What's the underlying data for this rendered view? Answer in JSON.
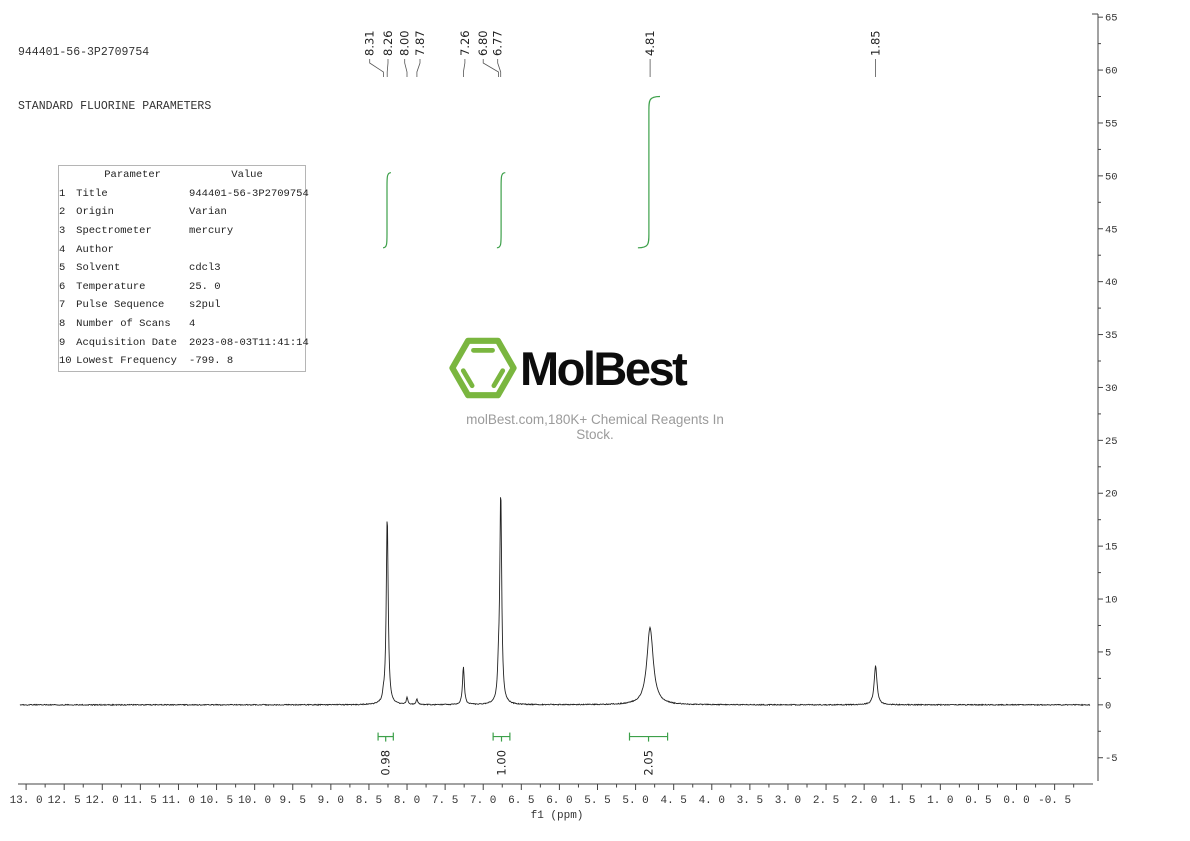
{
  "header": {
    "line1": "944401-56-3P2709754",
    "line2": "STANDARD FLUORINE PARAMETERS"
  },
  "parameters": {
    "col_param": "Parameter",
    "col_value": "Value",
    "rows": [
      {
        "num": "1",
        "name": "Title",
        "value": "944401-56-3P2709754"
      },
      {
        "num": "2",
        "name": "Origin",
        "value": "Varian"
      },
      {
        "num": "3",
        "name": "Spectrometer",
        "value": "mercury"
      },
      {
        "num": "4",
        "name": "Author",
        "value": ""
      },
      {
        "num": "5",
        "name": "Solvent",
        "value": "cdcl3"
      },
      {
        "num": "6",
        "name": "Temperature",
        "value": "25. 0"
      },
      {
        "num": "7",
        "name": "Pulse Sequence",
        "value": "s2pul"
      },
      {
        "num": "8",
        "name": "Number of Scans",
        "value": "4"
      },
      {
        "num": "9",
        "name": "Acquisition Date",
        "value": "2023-08-03T11:41:14"
      },
      {
        "num": "10",
        "name": "Lowest Frequency",
        "value": "-799. 8"
      }
    ]
  },
  "logo": {
    "wordmark": "MolBest",
    "tagline": "molBest.com,180K+ Chemical Reagents In Stock.",
    "green": "#7ab63f"
  },
  "chart_data": {
    "type": "line",
    "title": "",
    "xlabel": "f1 (ppm)",
    "ylabel": "",
    "xlim": [
      13.08,
      -1.03
    ],
    "ylim": [
      -7.2,
      65.3
    ],
    "grid": false,
    "x_ticks": [
      {
        "v": 13.0,
        "label": "13. 0"
      },
      {
        "v": 12.5,
        "label": "12. 5"
      },
      {
        "v": 12.0,
        "label": "12. 0"
      },
      {
        "v": 11.5,
        "label": "11. 5"
      },
      {
        "v": 11.0,
        "label": "11. 0"
      },
      {
        "v": 10.5,
        "label": "10. 5"
      },
      {
        "v": 10.0,
        "label": "10. 0"
      },
      {
        "v": 9.5,
        "label": "9. 5"
      },
      {
        "v": 9.0,
        "label": "9. 0"
      },
      {
        "v": 8.5,
        "label": "8. 5"
      },
      {
        "v": 8.0,
        "label": "8. 0"
      },
      {
        "v": 7.5,
        "label": "7. 5"
      },
      {
        "v": 7.0,
        "label": "7. 0"
      },
      {
        "v": 6.5,
        "label": "6. 5"
      },
      {
        "v": 6.0,
        "label": "6. 0"
      },
      {
        "v": 5.5,
        "label": "5. 5"
      },
      {
        "v": 5.0,
        "label": "5. 0"
      },
      {
        "v": 4.5,
        "label": "4. 5"
      },
      {
        "v": 4.0,
        "label": "4. 0"
      },
      {
        "v": 3.5,
        "label": "3. 5"
      },
      {
        "v": 3.0,
        "label": "3. 0"
      },
      {
        "v": 2.5,
        "label": "2. 5"
      },
      {
        "v": 2.0,
        "label": "2. 0"
      },
      {
        "v": 1.5,
        "label": "1. 5"
      },
      {
        "v": 1.0,
        "label": "1. 0"
      },
      {
        "v": 0.5,
        "label": "0. 5"
      },
      {
        "v": 0.0,
        "label": "0. 0"
      },
      {
        "v": -0.5,
        "label": "-0. 5"
      }
    ],
    "y_ticks": [
      65,
      60,
      55,
      50,
      45,
      40,
      35,
      30,
      25,
      20,
      15,
      10,
      5,
      0,
      -5
    ],
    "peaks": [
      {
        "ppm": 8.31,
        "height": 0.55,
        "hwhm": 0.012
      },
      {
        "ppm": 8.26,
        "height": 17.9,
        "hwhm": 0.015
      },
      {
        "ppm": 8.0,
        "height": 0.65,
        "hwhm": 0.012
      },
      {
        "ppm": 7.87,
        "height": 0.5,
        "hwhm": 0.012
      },
      {
        "ppm": 7.26,
        "height": 3.6,
        "hwhm": 0.014
      },
      {
        "ppm": 6.8,
        "height": 2.2,
        "hwhm": 0.013
      },
      {
        "ppm": 6.77,
        "height": 20.0,
        "hwhm": 0.015
      },
      {
        "ppm": 4.81,
        "height": 7.3,
        "hwhm": 0.05
      },
      {
        "ppm": 1.85,
        "height": 3.7,
        "hwhm": 0.022
      }
    ],
    "peak_labels": [
      {
        "text": "8.31",
        "ppm": 8.31,
        "label_ppm": 8.49
      },
      {
        "text": "8.26",
        "ppm": 8.26,
        "label_ppm": 8.25
      },
      {
        "text": "8.00",
        "ppm": 8.0,
        "label_ppm": 8.03
      },
      {
        "text": "7.87",
        "ppm": 7.87,
        "label_ppm": 7.83
      },
      {
        "text": "7.26",
        "ppm": 7.26,
        "label_ppm": 7.24
      },
      {
        "text": "6.80",
        "ppm": 6.8,
        "label_ppm": 7.0
      },
      {
        "text": "6.77",
        "ppm": 6.77,
        "label_ppm": 6.81
      },
      {
        "text": "4.81",
        "ppm": 4.81,
        "label_ppm": 4.81
      },
      {
        "text": "1.85",
        "ppm": 1.85,
        "label_ppm": 1.85
      }
    ],
    "integral_curves": [
      {
        "from_ppm": 8.315,
        "to_ppm": 8.21,
        "y_bottom": 43.2,
        "y_top": 50.3
      },
      {
        "from_ppm": 6.82,
        "to_ppm": 6.71,
        "y_bottom": 43.2,
        "y_top": 50.3
      },
      {
        "from_ppm": 4.97,
        "to_ppm": 4.68,
        "y_bottom": 43.2,
        "y_top": 57.5
      }
    ],
    "integrations": [
      {
        "from_ppm": 8.38,
        "to_ppm": 8.18,
        "y": -3.0,
        "value": "0.98"
      },
      {
        "from_ppm": 6.87,
        "to_ppm": 6.65,
        "y": -3.0,
        "value": "1.00"
      },
      {
        "from_ppm": 5.08,
        "to_ppm": 4.58,
        "y": -3.0,
        "value": "2.05"
      }
    ],
    "colors": {
      "trace": "#222222",
      "integral": "#3da04a",
      "axis": "#444444",
      "tick_text": "#333333"
    }
  }
}
